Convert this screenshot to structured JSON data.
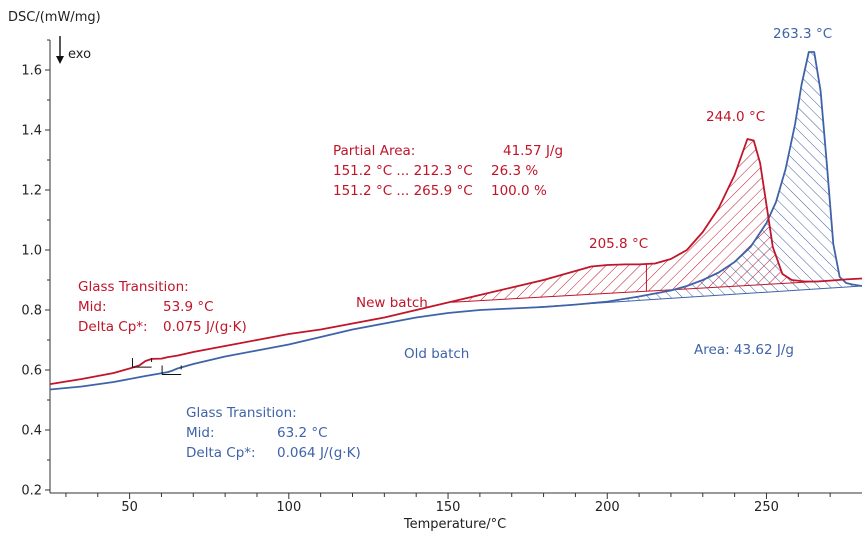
{
  "chart_data": {
    "type": "line",
    "xlabel": "Temperature/°C",
    "ylabel": "DSC/(mW/mg)",
    "exo_label": "exo",
    "xlim": [
      25,
      280
    ],
    "ylim": [
      0.19,
      1.8
    ],
    "xticks": [
      50,
      100,
      150,
      200,
      250
    ],
    "yticks": [
      0.2,
      0.4,
      0.6,
      0.8,
      1.0,
      1.2,
      1.4,
      1.6
    ],
    "ytick_labels": [
      "0.2",
      "0.4",
      "0.6",
      "0.8",
      "1.0",
      "1.2",
      "1.4",
      "1.6"
    ],
    "grid": false,
    "colors": {
      "new": "#c0152a",
      "old": "#3f63a8"
    },
    "series": [
      {
        "name": "New batch",
        "color": "#c0152a",
        "x": [
          25,
          35,
          45,
          50,
          53,
          55,
          57,
          60,
          62,
          65,
          70,
          80,
          90,
          100,
          110,
          120,
          130,
          140,
          150,
          160,
          170,
          180,
          190,
          195,
          200,
          205.8,
          210,
          215,
          220,
          225,
          230,
          235,
          240,
          242,
          244,
          246,
          248,
          250,
          252,
          255,
          258,
          262,
          265.9,
          270,
          275,
          280
        ],
        "values": [
          0.553,
          0.57,
          0.59,
          0.605,
          0.615,
          0.63,
          0.637,
          0.638,
          0.643,
          0.648,
          0.66,
          0.68,
          0.7,
          0.72,
          0.735,
          0.755,
          0.775,
          0.8,
          0.825,
          0.85,
          0.875,
          0.9,
          0.93,
          0.945,
          0.95,
          0.952,
          0.952,
          0.955,
          0.97,
          1.0,
          1.06,
          1.14,
          1.25,
          1.31,
          1.37,
          1.365,
          1.29,
          1.15,
          1.01,
          0.92,
          0.9,
          0.895,
          0.895,
          0.898,
          0.902,
          0.905
        ]
      },
      {
        "name": "Old batch",
        "color": "#3f63a8",
        "x": [
          25,
          35,
          45,
          55,
          62,
          63.2,
          65,
          70,
          80,
          90,
          100,
          110,
          120,
          130,
          140,
          150,
          160,
          170,
          180,
          190,
          200,
          210,
          220,
          225,
          230,
          235,
          240,
          245,
          250,
          253,
          256,
          259,
          261,
          263.3,
          265,
          267,
          269,
          271,
          273,
          275,
          277,
          280
        ],
        "values": [
          0.535,
          0.545,
          0.56,
          0.58,
          0.593,
          0.597,
          0.605,
          0.62,
          0.645,
          0.665,
          0.685,
          0.71,
          0.735,
          0.755,
          0.775,
          0.79,
          0.8,
          0.805,
          0.81,
          0.818,
          0.828,
          0.845,
          0.865,
          0.88,
          0.9,
          0.925,
          0.96,
          1.01,
          1.09,
          1.16,
          1.27,
          1.42,
          1.55,
          1.66,
          1.66,
          1.53,
          1.28,
          1.02,
          0.91,
          0.89,
          0.885,
          0.88
        ]
      }
    ],
    "area_baselines": {
      "new": {
        "x": [
          151.2,
          265.9
        ],
        "y": [
          0.826,
          0.895
        ]
      },
      "old": {
        "x": [
          175,
          280
        ],
        "y": [
          0.808,
          0.88
        ]
      }
    },
    "partial_area_split_x": 212.3,
    "annotations": {
      "peak_263": "263.3 °C",
      "peak_244": "244.0 °C",
      "peak_205": "205.8 °C",
      "partial_area_label": "Partial Area:",
      "partial_area_value": "41.57 J/g",
      "partial_range1": "151.2 °C ... 212.3 °C",
      "partial_pct1": "26.3 %",
      "partial_range2": "151.2 °C ... 265.9 °C",
      "partial_pct2": "100.0 %",
      "new_batch": "New batch",
      "old_batch": "Old batch",
      "area_old": "Area: 43.62 J/g",
      "gt_red_title": "Glass Transition:",
      "gt_red_mid_label": "Mid:",
      "gt_red_mid_value": "53.9 °C",
      "gt_red_cp_label": "Delta Cp*:",
      "gt_red_cp_value": "0.075 J/(g·K)",
      "gt_blue_title": "Glass Transition:",
      "gt_blue_mid_label": "Mid:",
      "gt_blue_mid_value": "63.2 °C",
      "gt_blue_cp_label": "Delta Cp*:",
      "gt_blue_cp_value": "0.064 J/(g·K)"
    }
  }
}
